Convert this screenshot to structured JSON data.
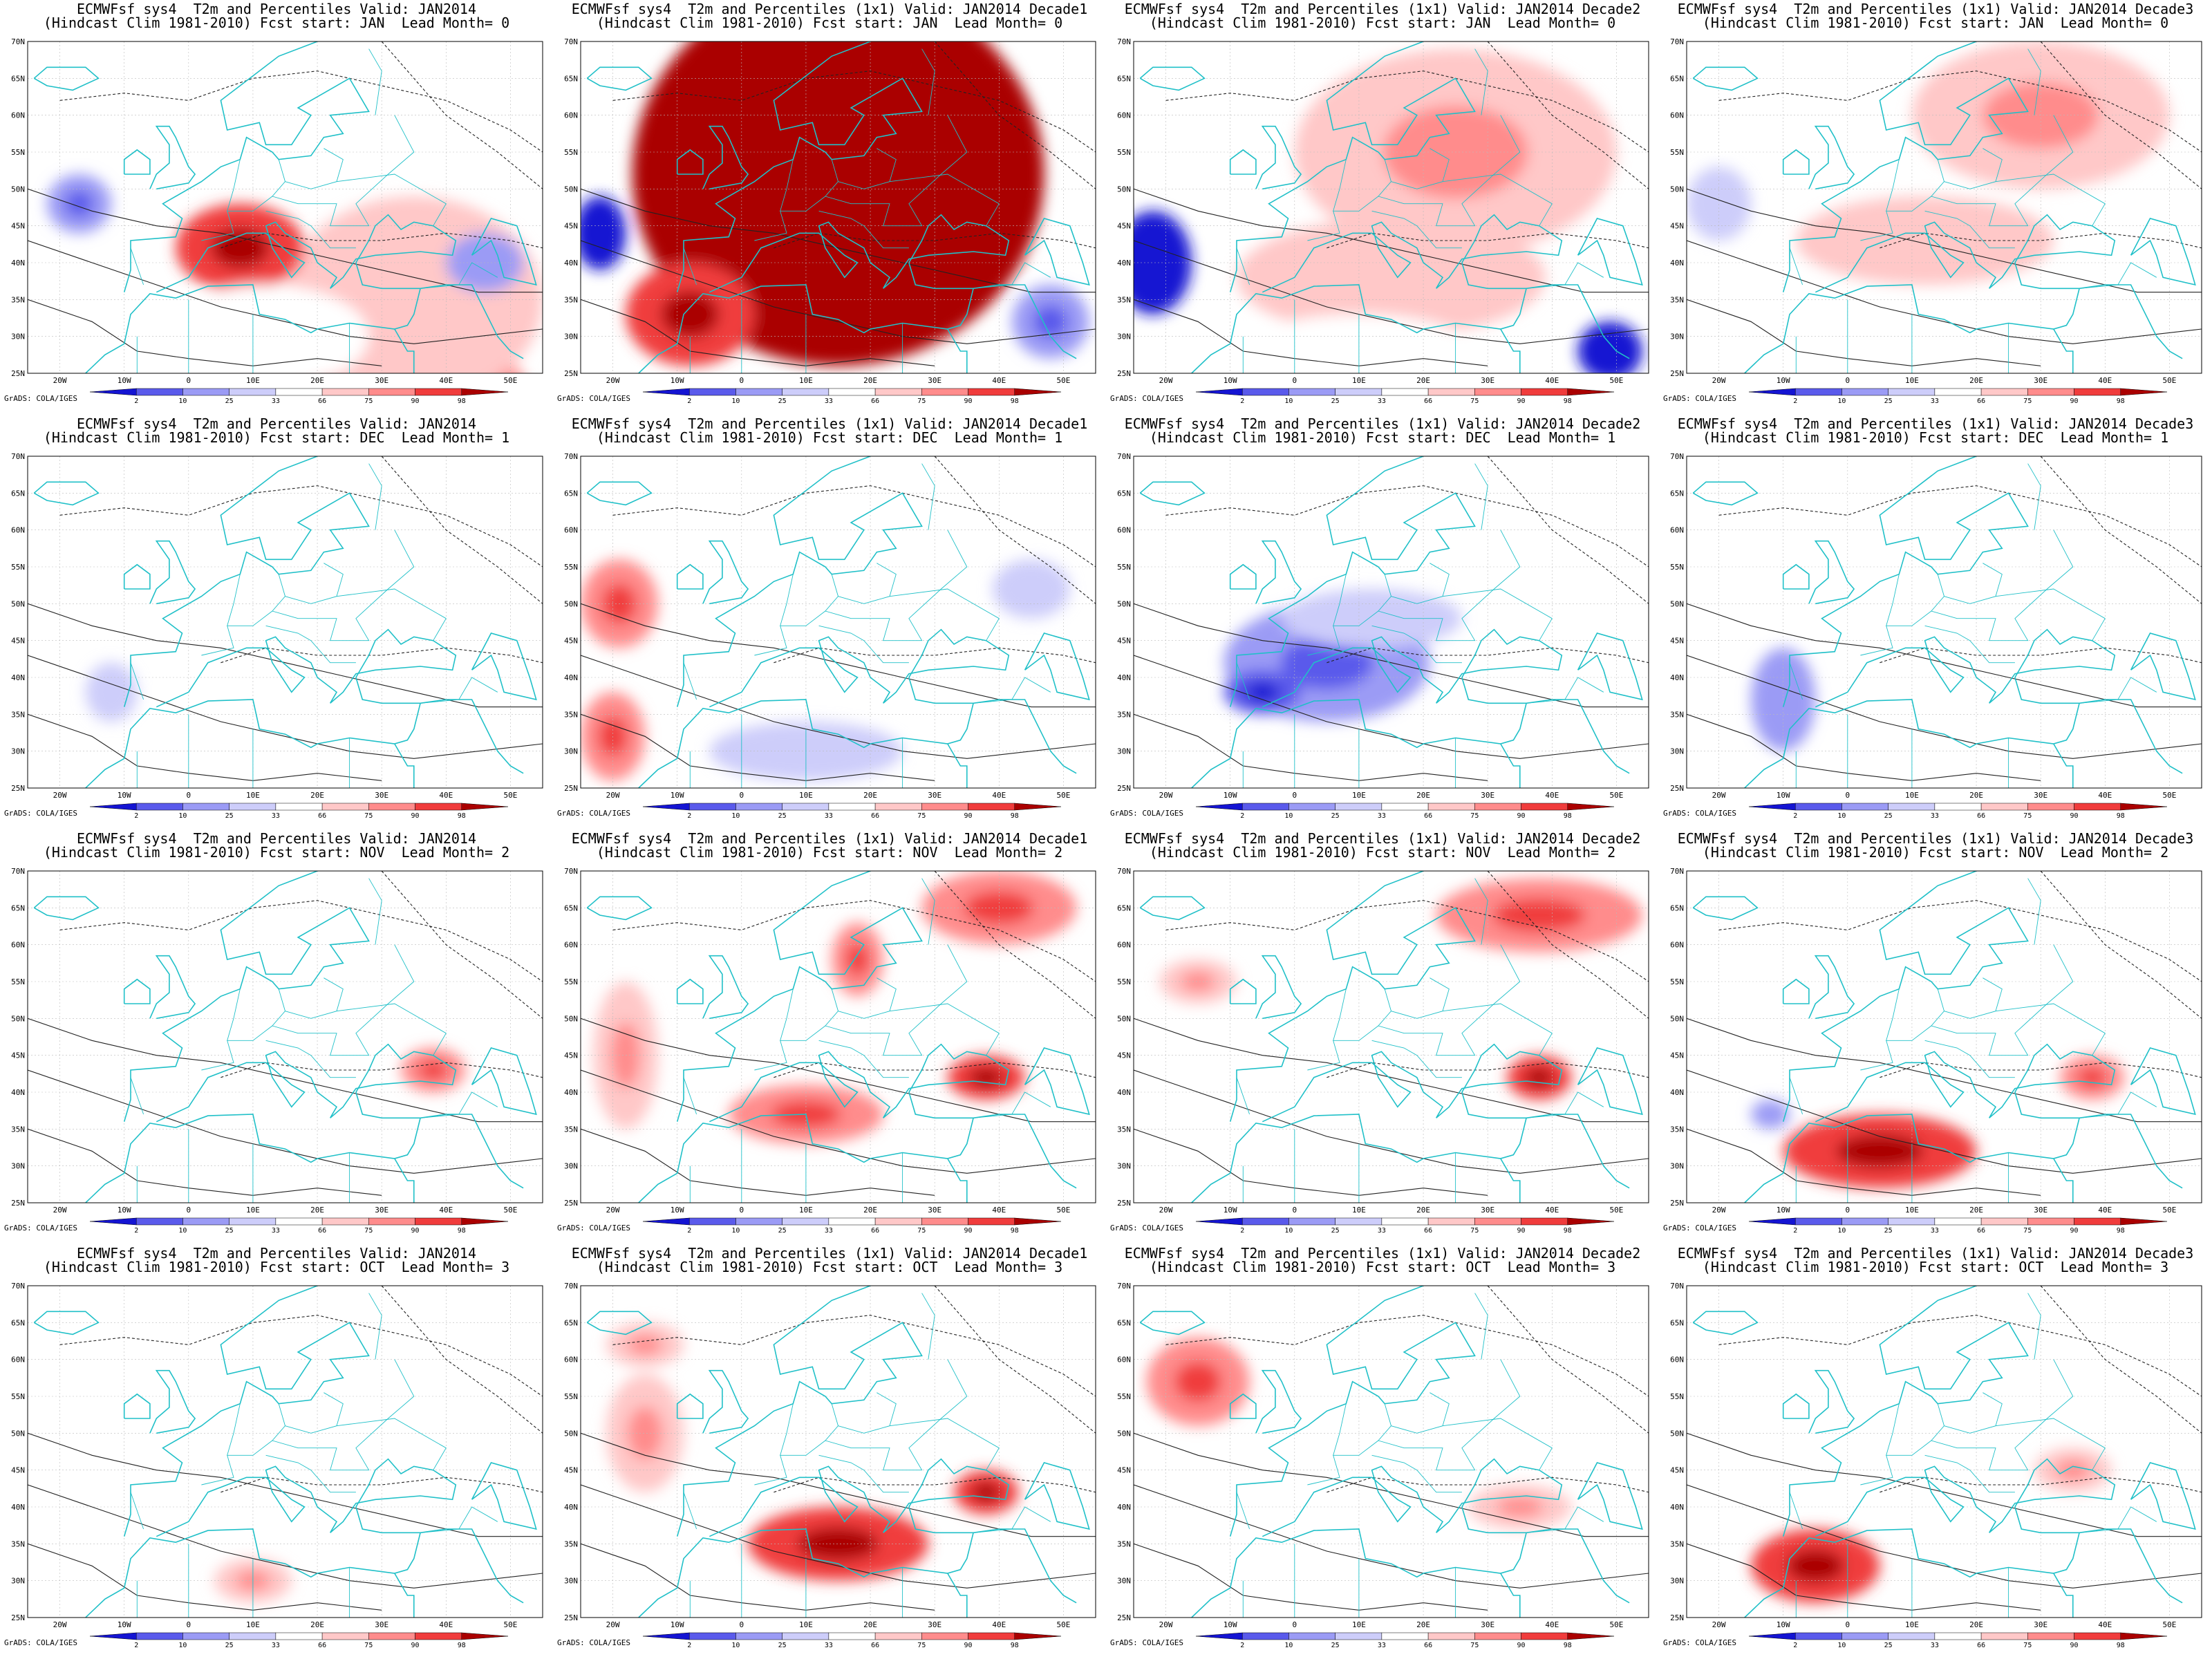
{
  "common": {
    "lat_labels": [
      "70N",
      "65N",
      "60N",
      "55N",
      "50N",
      "45N",
      "40N",
      "35N",
      "30N",
      "25N"
    ],
    "lon_labels": [
      "20W",
      "10W",
      "0",
      "10E",
      "20E",
      "30E",
      "40E",
      "50E"
    ],
    "colorbar_ticks": [
      "2",
      "10",
      "25",
      "33",
      "66",
      "75",
      "90",
      "98"
    ],
    "colorbar_colors": [
      "#1414d2",
      "#5a5aeb",
      "#9b9bf5",
      "#cdcdfa",
      "#ffffff",
      "#ffc8c8",
      "#ff8c8c",
      "#f03c3c",
      "#aa0000"
    ],
    "credit": "GrADS: COLA/IGES",
    "coastline_color": "#20c0c8"
  },
  "panels": [
    {
      "title1": "ECMWFsf sys4  T2m and Percentiles Valid: JAN2014",
      "title2": "(Hindcast Clim 1981-2010) Fcst start: JAN  Lead Month= 0",
      "blobs": [
        [
          30,
          15,
          26,
          18,
          0.75
        ],
        [
          18,
          8,
          14,
          9,
          0.95
        ],
        [
          35,
          35,
          20,
          14,
          0.6
        ],
        [
          8,
          42,
          10,
          6,
          0.85
        ],
        [
          12,
          30,
          16,
          7,
          0.55
        ],
        [
          -17,
          48,
          5,
          4,
          0.25
        ],
        [
          46,
          40,
          6,
          4,
          0.3
        ]
      ]
    },
    {
      "title1": "ECMWFsf sys4  T2m and Percentiles (1x1) Valid: JAN2014 Decade1",
      "title2": "(Hindcast Clim 1981-2010) Fcst start: JAN  Lead Month= 0",
      "blobs": [
        [
          15,
          52,
          32,
          26,
          0.97
        ],
        [
          -8,
          33,
          10,
          7,
          0.85
        ],
        [
          -22,
          44,
          4,
          5,
          0.05
        ],
        [
          48,
          32,
          6,
          5,
          0.25
        ]
      ]
    },
    {
      "title1": "ECMWFsf sys4  T2m and Percentiles (1x1) Valid: JAN2014 Decade2",
      "title2": "(Hindcast Clim 1981-2010) Fcst start: JAN  Lead Month= 0",
      "blobs": [
        [
          25,
          55,
          25,
          14,
          0.65
        ],
        [
          15,
          38,
          24,
          8,
          0.6
        ],
        [
          10,
          28,
          18,
          5,
          0.55
        ],
        [
          -22,
          40,
          6,
          7,
          0.1
        ],
        [
          49,
          28,
          5,
          4,
          0.1
        ]
      ]
    },
    {
      "title1": "ECMWFsf sys4  T2m and Percentiles (1x1) Valid: JAN2014 Decade3",
      "title2": "(Hindcast Clim 1981-2010) Fcst start: JAN  Lead Month= 0",
      "blobs": [
        [
          30,
          60,
          20,
          10,
          0.65
        ],
        [
          12,
          43,
          20,
          6,
          0.6
        ],
        [
          5,
          30,
          18,
          5,
          0.55
        ],
        [
          -20,
          48,
          5,
          5,
          0.35
        ]
      ]
    },
    {
      "title1": "ECMWFsf sys4  T2m and Percentiles Valid: JAN2014",
      "title2": "(Hindcast Clim 1981-2010) Fcst start: DEC  Lead Month= 1",
      "blobs": [
        [
          -12,
          38,
          4,
          4,
          0.35
        ]
      ]
    },
    {
      "title1": "ECMWFsf sys4  T2m and Percentiles (1x1) Valid: JAN2014 Decade1",
      "title2": "(Hindcast Clim 1981-2010) Fcst start: DEC  Lead Month= 1",
      "blobs": [
        [
          -19,
          50,
          6,
          6,
          0.7
        ],
        [
          -20,
          32,
          5,
          6,
          0.7
        ],
        [
          10,
          30,
          15,
          4,
          0.35
        ],
        [
          45,
          52,
          6,
          4,
          0.35
        ]
      ]
    },
    {
      "title1": "ECMWFsf sys4  T2m and Percentiles (1x1) Valid: JAN2014 Decade2",
      "title2": "(Hindcast Clim 1981-2010) Fcst start: DEC  Lead Month= 1",
      "blobs": [
        [
          5,
          42,
          16,
          8,
          0.25
        ],
        [
          -5,
          38,
          6,
          3,
          0.15
        ],
        [
          12,
          48,
          14,
          4,
          0.35
        ]
      ]
    },
    {
      "title1": "ECMWFsf sys4  T2m and Percentiles (1x1) Valid: JAN2014 Decade3",
      "title2": "(Hindcast Clim 1981-2010) Fcst start: DEC  Lead Month= 1",
      "blobs": [
        [
          -11,
          37,
          3,
          5,
          0.06
        ],
        [
          -10,
          37,
          5,
          7,
          0.3
        ]
      ]
    },
    {
      "title1": "ECMWFsf sys4  T2m and Percentiles Valid: JAN2014",
      "title2": "(Hindcast Clim 1981-2010) Fcst start: NOV  Lead Month= 2",
      "blobs": [
        [
          38,
          43,
          5,
          3,
          0.7
        ]
      ]
    },
    {
      "title1": "ECMWFsf sys4  T2m and Percentiles (1x1) Valid: JAN2014 Decade1",
      "title2": "(Hindcast Clim 1981-2010) Fcst start: NOV  Lead Month= 2",
      "blobs": [
        [
          40,
          65,
          12,
          5,
          0.7
        ],
        [
          38,
          42,
          6,
          3,
          0.85
        ],
        [
          10,
          37,
          12,
          4,
          0.7
        ],
        [
          -18,
          45,
          5,
          10,
          0.65
        ],
        [
          18,
          58,
          4,
          5,
          0.7
        ]
      ]
    },
    {
      "title1": "ECMWFsf sys4  T2m and Percentiles (1x1) Valid: JAN2014 Decade2",
      "title2": "(Hindcast Clim 1981-2010) Fcst start: NOV  Lead Month= 2",
      "blobs": [
        [
          38,
          64,
          16,
          5,
          0.75
        ],
        [
          -15,
          55,
          6,
          3,
          0.65
        ],
        [
          38,
          42,
          5,
          3,
          0.8
        ]
      ]
    },
    {
      "title1": "ECMWFsf sys4  T2m and Percentiles (1x1) Valid: JAN2014 Decade3",
      "title2": "(Hindcast Clim 1981-2010) Fcst start: NOV  Lead Month= 2",
      "blobs": [
        [
          5,
          32,
          15,
          5,
          0.8
        ],
        [
          -12,
          37,
          3,
          2,
          0.3
        ],
        [
          38,
          42,
          5,
          3,
          0.7
        ]
      ]
    },
    {
      "title1": "ECMWFsf sys4  T2m and Percentiles Valid: JAN2014",
      "title2": "(Hindcast Clim 1981-2010) Fcst start: OCT  Lead Month= 3",
      "blobs": [
        [
          10,
          30,
          6,
          3,
          0.65
        ]
      ]
    },
    {
      "title1": "ECMWFsf sys4  T2m and Percentiles (1x1) Valid: JAN2014 Decade1",
      "title2": "(Hindcast Clim 1981-2010) Fcst start: OCT  Lead Month= 3",
      "blobs": [
        [
          15,
          35,
          14,
          5,
          0.8
        ],
        [
          38,
          42,
          5,
          3,
          0.8
        ],
        [
          -15,
          50,
          6,
          8,
          0.65
        ],
        [
          -15,
          62,
          6,
          3,
          0.65
        ]
      ]
    },
    {
      "title1": "ECMWFsf sys4  T2m and Percentiles (1x1) Valid: JAN2014 Decade2",
      "title2": "(Hindcast Clim 1981-2010) Fcst start: OCT  Lead Month= 3",
      "blobs": [
        [
          -15,
          57,
          8,
          6,
          0.7
        ],
        [
          35,
          40,
          8,
          3,
          0.65
        ]
      ]
    },
    {
      "title1": "ECMWFsf sys4  T2m and Percentiles (1x1) Valid: JAN2014 Decade3",
      "title2": "(Hindcast Clim 1981-2010) Fcst start: OCT  Lead Month= 3",
      "blobs": [
        [
          -5,
          32,
          10,
          5,
          0.8
        ],
        [
          35,
          45,
          6,
          3,
          0.65
        ]
      ]
    }
  ]
}
